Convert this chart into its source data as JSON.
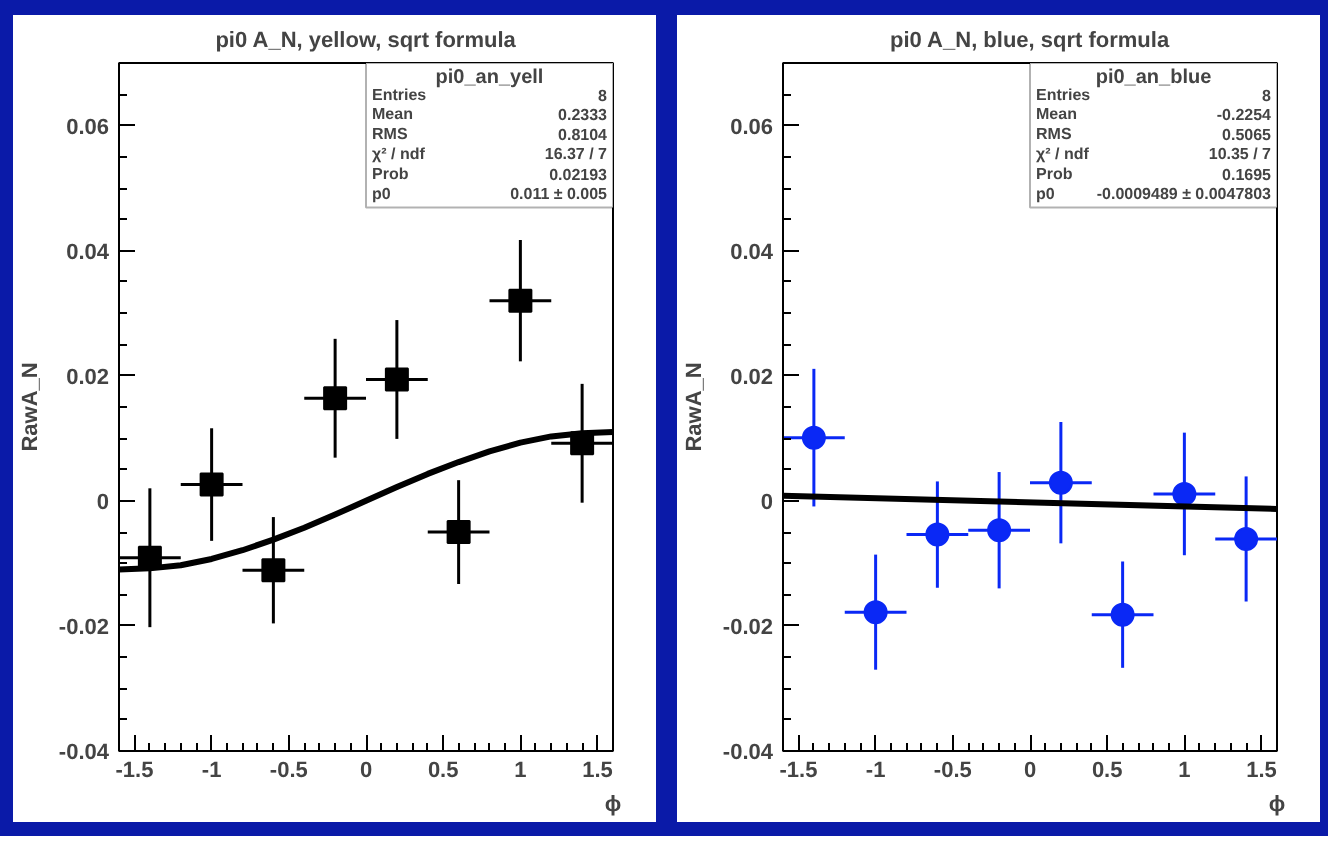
{
  "chart_data": [
    {
      "type": "scatter",
      "title": "pi0 A_N, yellow, sqrt formula",
      "xlabel": "ϕ",
      "ylabel": "RawA_N",
      "x": [
        -1.4,
        -1.0,
        -0.6,
        -0.2,
        0.2,
        0.6,
        1.0,
        1.4
      ],
      "series": [
        {
          "type": "scatter",
          "color": "#000000",
          "marker": "square",
          "values": [
            -0.0091,
            0.0026,
            -0.0111,
            0.0164,
            0.0194,
            -0.005,
            0.032,
            0.0092
          ],
          "errors": [
            0.0111,
            0.009,
            0.0085,
            0.0095,
            0.0095,
            0.0083,
            0.0097,
            0.0095
          ],
          "xerrors": [
            0.2,
            0.2,
            0.2,
            0.2,
            0.2,
            0.2,
            0.2,
            0.2
          ]
        },
        {
          "type": "line",
          "color": "#000000",
          "x": [
            -1.6,
            -1.4,
            -1.2,
            -1.0,
            -0.8,
            -0.6,
            -0.4,
            -0.2,
            0.0,
            0.2,
            0.4,
            0.6,
            0.8,
            1.0,
            1.2,
            1.4,
            1.6
          ],
          "values": [
            -0.011,
            -0.0108,
            -0.0103,
            -0.0093,
            -0.0079,
            -0.0062,
            -0.0043,
            -0.0022,
            0.0,
            0.0022,
            0.0043,
            0.0062,
            0.0079,
            0.0093,
            0.0103,
            0.0108,
            0.011
          ]
        }
      ],
      "xlim": [
        -1.6,
        1.6
      ],
      "ylim": [
        -0.04,
        0.07
      ],
      "xticks": [
        -1.5,
        -1,
        -0.5,
        0,
        0.5,
        1,
        1.5
      ],
      "yticks": [
        -0.04,
        -0.02,
        0,
        0.02,
        0.04,
        0.06
      ],
      "grid": false,
      "annotations": [
        "pi0_an_yell",
        "Entries",
        "8",
        "Mean",
        "0.2333",
        "RMS",
        "0.8104",
        "χ² / ndf",
        "16.37 / 7",
        "Prob",
        "0.02193",
        "p0",
        "0.011 ± 0.005"
      ]
    },
    {
      "type": "scatter",
      "title": "pi0 A_N, blue, sqrt formula",
      "xlabel": "ϕ",
      "ylabel": "RawA_N",
      "x": [
        -1.4,
        -1.0,
        -0.6,
        -0.2,
        0.2,
        0.6,
        1.0,
        1.4
      ],
      "series": [
        {
          "type": "scatter",
          "color": "#0a28f5",
          "marker": "circle",
          "values": [
            0.0101,
            -0.0178,
            -0.0054,
            -0.0047,
            0.0029,
            -0.0182,
            0.0011,
            -0.0061
          ],
          "errors": [
            0.011,
            0.0092,
            0.0085,
            0.0093,
            0.0097,
            0.0085,
            0.0098,
            0.01
          ],
          "xerrors": [
            0.2,
            0.2,
            0.2,
            0.2,
            0.2,
            0.2,
            0.2,
            0.2
          ]
        },
        {
          "type": "line",
          "color": "#000000",
          "x": [
            -1.6,
            1.6
          ],
          "values": [
            0.0008,
            -0.0013
          ]
        }
      ],
      "xlim": [
        -1.6,
        1.6
      ],
      "ylim": [
        -0.04,
        0.07
      ],
      "xticks": [
        -1.5,
        -1,
        -0.5,
        0,
        0.5,
        1,
        1.5
      ],
      "yticks": [
        -0.04,
        -0.02,
        0,
        0.02,
        0.04,
        0.06
      ],
      "grid": false,
      "annotations": [
        "pi0_an_blue",
        "Entries",
        "8",
        "Mean",
        "-0.2254",
        "RMS",
        "0.5065",
        "χ² / ndf",
        "10.35 / 7",
        "Prob",
        "0.1695",
        "p0",
        "-0.0009489 ± 0.0047803"
      ]
    }
  ]
}
